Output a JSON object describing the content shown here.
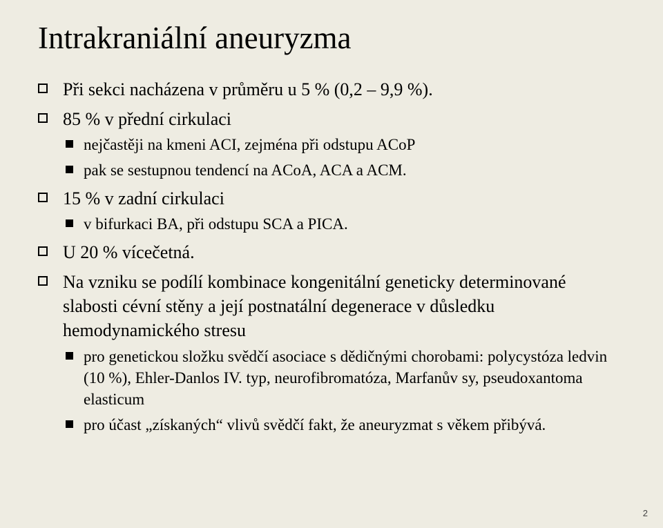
{
  "slide": {
    "background_color": "#eeece2",
    "text_color": "#000000",
    "title_fontsize": 45,
    "body_fontsize": 26,
    "sub_fontsize": 23,
    "font_family": "Times New Roman",
    "title": "Intrakraniální aneuryzma",
    "page_number": "2",
    "bullets": [
      {
        "text": "Při sekci nacházena v průměru u 5 % (0,2 – 9,9 %).",
        "children": []
      },
      {
        "text": "85 % v přední cirkulaci",
        "children": [
          {
            "text": "nejčastěji na kmeni ACI, zejména při odstupu ACoP"
          },
          {
            "text": "pak se sestupnou tendencí na ACoA, ACA a ACM."
          }
        ]
      },
      {
        "text": "15 % v zadní cirkulaci",
        "children": [
          {
            "text": "v bifurkaci BA, při odstupu SCA a PICA."
          }
        ]
      },
      {
        "text": "U 20 % vícečetná.",
        "children": []
      },
      {
        "text": "Na vzniku se podílí kombinace kongenitální geneticky determinované slabosti cévní stěny a její postnatální degenerace v důsledku hemodynamického stresu",
        "children": [
          {
            "text": "pro genetickou složku svědčí asociace s dědičnými chorobami: polycystóza ledvin (10 %), Ehler-Danlos IV. typ, neurofibromatóza, Marfanův sy, pseudoxantoma elasticum"
          },
          {
            "text": "pro účast „získaných“ vlivů svědčí fakt, že aneuryzmat s věkem přibývá."
          }
        ]
      }
    ]
  }
}
